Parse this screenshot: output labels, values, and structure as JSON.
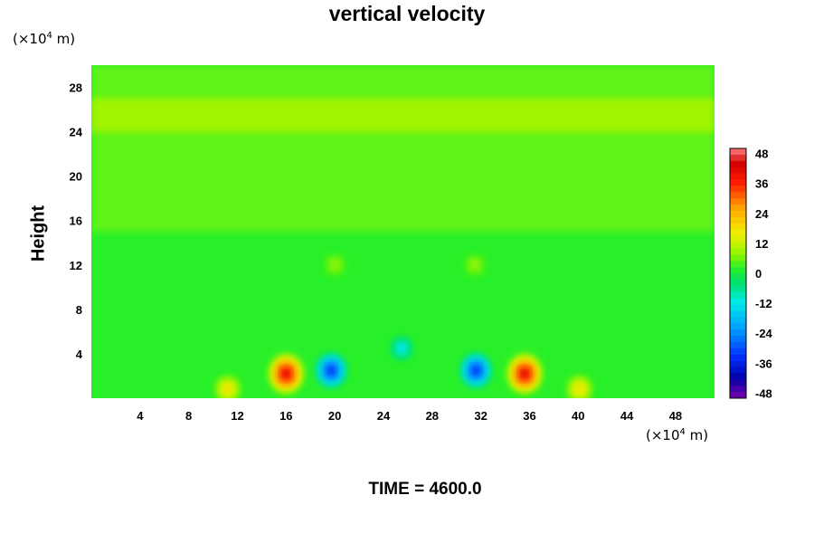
{
  "title": "vertical velocity",
  "footer": "TIME = 4600.0",
  "y_unit": "(×10",
  "x_unit": "(×10",
  "unit_exp": "4",
  "unit_tail": " m)",
  "chart_data": {
    "type": "heatmap",
    "title": "vertical velocity",
    "xlabel": "",
    "ylabel": "Height",
    "x_unit_label": "(×10^4 m)",
    "y_unit_label": "(×10^4 m)",
    "xlim": [
      0,
      51.2
    ],
    "ylim": [
      0,
      30
    ],
    "x_ticks": [
      4,
      8,
      12,
      16,
      20,
      24,
      28,
      32,
      36,
      40,
      44,
      48
    ],
    "y_ticks": [
      4,
      8,
      12,
      16,
      20,
      24,
      28
    ],
    "colorbar": {
      "ticks": [
        48,
        36,
        24,
        12,
        0,
        -12,
        -24,
        -36,
        -48
      ],
      "range": [
        -50,
        50
      ]
    },
    "background_value": 2,
    "bands": [
      {
        "y_from": 15,
        "y_to": 30,
        "value": 5
      },
      {
        "y_from": 24,
        "y_to": 27,
        "value": 9
      }
    ],
    "features": [
      {
        "x": 16.0,
        "y": 2.2,
        "value": 44
      },
      {
        "x": 35.6,
        "y": 2.2,
        "value": 44
      },
      {
        "x": 19.7,
        "y": 2.5,
        "value": -36
      },
      {
        "x": 31.6,
        "y": 2.5,
        "value": -36
      },
      {
        "x": 25.5,
        "y": 4.5,
        "value": -15
      },
      {
        "x": 11.2,
        "y": 0.8,
        "value": 20
      },
      {
        "x": 40.1,
        "y": 0.8,
        "value": 20
      },
      {
        "x": 20.0,
        "y": 12.0,
        "value": 9
      },
      {
        "x": 31.5,
        "y": 12.0,
        "value": 9
      }
    ],
    "time": "TIME = 4600.0"
  }
}
